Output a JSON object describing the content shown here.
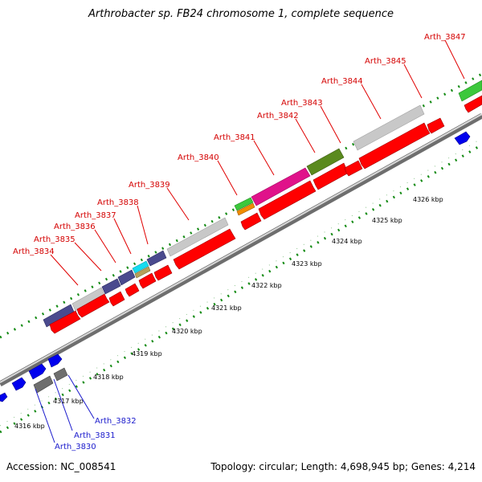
{
  "title": "Arthrobacter sp. FB24 chromosome 1, complete sequence",
  "footer": {
    "accession": "Accession: NC_008541",
    "stats": "Topology: circular; Length: 4,698,945 bp; Genes: 4,214"
  },
  "colors": {
    "backbone": "#9e9e9e",
    "cds": "#ff0000",
    "rna_or_other": "#c8c8c8",
    "cog_purple": "#4a4a8e",
    "cog_magenta": "#e0128a",
    "cog_olive": "#5a8a1e",
    "cog_green": "#3cc83c",
    "cog_cyan": "#14dcf0",
    "cog_orange": "#f08c00",
    "cog_tan": "#b4a05a",
    "reverse_gene": "#0000ee",
    "reverse_gray": "#6e6e6e",
    "label_forward": "#d40000",
    "label_reverse": "#1a1acc",
    "tick_green": "#138a13"
  },
  "ticks": [
    {
      "label": "4316 kbp"
    },
    {
      "label": "4317 kbp"
    },
    {
      "label": "4318 kbp"
    },
    {
      "label": "4319 kbp"
    },
    {
      "label": "4320 kbp"
    },
    {
      "label": "4321 kbp"
    },
    {
      "label": "4322 kbp"
    },
    {
      "label": "4323 kbp"
    },
    {
      "label": "4324 kbp"
    },
    {
      "label": "4325 kbp"
    },
    {
      "label": "4326 kbp"
    }
  ],
  "forward_genes": [
    {
      "label": "Arth_3834"
    },
    {
      "label": "Arth_3835"
    },
    {
      "label": "Arth_3836"
    },
    {
      "label": "Arth_3837"
    },
    {
      "label": "Arth_3838"
    },
    {
      "label": "Arth_3839"
    },
    {
      "label": "Arth_3840"
    },
    {
      "label": "Arth_3841"
    },
    {
      "label": "Arth_3842"
    },
    {
      "label": "Arth_3843"
    },
    {
      "label": "Arth_3844"
    },
    {
      "label": "Arth_3845"
    },
    {
      "label": "Arth_3847"
    }
  ],
  "reverse_genes": [
    {
      "label": "Arth_3830"
    },
    {
      "label": "Arth_3831"
    },
    {
      "label": "Arth_3832"
    }
  ]
}
